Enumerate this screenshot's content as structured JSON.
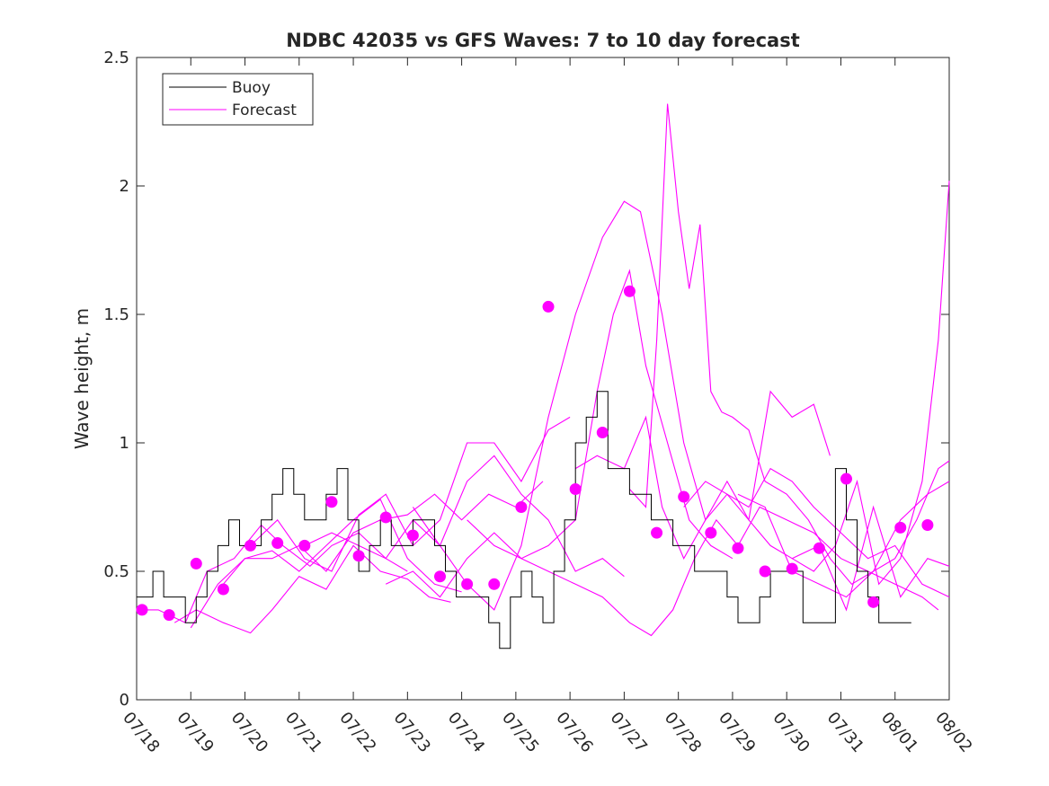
{
  "chart_data": {
    "type": "line",
    "title": "NDBC 42035 vs GFS Waves: 7 to 10 day forecast",
    "xlabel": "",
    "ylabel": "Wave height, m",
    "xlim": [
      0,
      15
    ],
    "ylim": [
      0,
      2.5
    ],
    "x_tick_labels": [
      "07/18",
      "07/19",
      "07/20",
      "07/21",
      "07/22",
      "07/23",
      "07/24",
      "07/25",
      "07/26",
      "07/27",
      "07/28",
      "07/29",
      "07/30",
      "07/31",
      "08/01",
      "08/02"
    ],
    "y_ticks": [
      0,
      0.5,
      1,
      1.5,
      2,
      2.5
    ],
    "y_tick_labels": [
      "0",
      "0.5",
      "1",
      "1.5",
      "2",
      "2.5"
    ],
    "legend_position": "top-left",
    "legend": [
      "Buoy",
      "Forecast"
    ],
    "colors": {
      "buoy": "#000000",
      "forecast": "#ff00ff"
    },
    "buoy": {
      "name": "Buoy",
      "x": [
        0.0,
        0.3,
        0.5,
        0.7,
        0.9,
        1.1,
        1.3,
        1.5,
        1.7,
        1.9,
        2.1,
        2.3,
        2.5,
        2.7,
        2.9,
        3.1,
        3.3,
        3.5,
        3.7,
        3.9,
        4.1,
        4.3,
        4.5,
        4.7,
        4.9,
        5.1,
        5.3,
        5.5,
        5.7,
        5.9,
        6.1,
        6.3,
        6.5,
        6.7,
        6.9,
        7.1,
        7.3,
        7.5,
        7.7,
        7.9,
        8.1,
        8.3,
        8.5,
        8.7,
        8.9,
        9.1,
        9.3,
        9.5,
        9.7,
        9.9,
        10.1,
        10.3,
        10.5,
        10.7,
        10.9,
        11.1,
        11.3,
        11.5,
        11.7,
        11.9,
        12.1,
        12.3,
        12.5,
        12.7,
        12.9,
        13.1,
        13.3,
        13.5,
        13.7,
        13.9,
        14.1,
        14.3
      ],
      "values": [
        0.4,
        0.5,
        0.4,
        0.4,
        0.3,
        0.4,
        0.5,
        0.6,
        0.7,
        0.6,
        0.6,
        0.7,
        0.8,
        0.9,
        0.8,
        0.7,
        0.7,
        0.8,
        0.9,
        0.7,
        0.5,
        0.6,
        0.7,
        0.6,
        0.6,
        0.7,
        0.7,
        0.6,
        0.5,
        0.4,
        0.4,
        0.4,
        0.3,
        0.2,
        0.4,
        0.5,
        0.4,
        0.3,
        0.5,
        0.7,
        1.0,
        1.1,
        1.2,
        0.9,
        0.9,
        0.8,
        0.8,
        0.7,
        0.7,
        0.6,
        0.6,
        0.5,
        0.5,
        0.5,
        0.4,
        0.3,
        0.3,
        0.4,
        0.5,
        0.5,
        0.5,
        0.3,
        0.3,
        0.3,
        0.9,
        0.7,
        0.5,
        0.4,
        0.3,
        0.3,
        0.3,
        0.3
      ]
    },
    "forecast": {
      "name": "Forecast",
      "series": [
        {
          "x": [
            0.0,
            0.4,
            0.9,
            1.3,
            1.8,
            2.3,
            2.7,
            3.2,
            3.6,
            4.1,
            4.6,
            5.0
          ],
          "values": [
            0.35,
            0.35,
            0.3,
            0.5,
            0.55,
            0.68,
            0.6,
            0.52,
            0.6,
            0.65,
            0.55,
            0.5
          ]
        },
        {
          "x": [
            0.7,
            1.1,
            1.6,
            2.1,
            2.5,
            3.0,
            3.5,
            4.0,
            4.5,
            5.0,
            5.4,
            5.8
          ],
          "values": [
            0.3,
            0.35,
            0.3,
            0.26,
            0.35,
            0.48,
            0.43,
            0.6,
            0.5,
            0.47,
            0.4,
            0.38
          ]
        },
        {
          "x": [
            1.0,
            1.5,
            2.0,
            2.5,
            3.0,
            3.5,
            4.0,
            4.5,
            5.0,
            5.5,
            6.0
          ],
          "values": [
            0.28,
            0.45,
            0.55,
            0.58,
            0.5,
            0.6,
            0.7,
            0.78,
            0.55,
            0.45,
            0.42
          ]
        },
        {
          "x": [
            1.6,
            2.0,
            2.5,
            3.0,
            3.5,
            4.0,
            4.5,
            5.0,
            5.5,
            6.0,
            6.5,
            7.0,
            7.5
          ],
          "values": [
            0.45,
            0.55,
            0.55,
            0.6,
            0.5,
            0.65,
            0.7,
            0.72,
            0.8,
            0.7,
            0.8,
            0.75,
            0.85
          ]
        },
        {
          "x": [
            2.1,
            2.6,
            3.1,
            3.6,
            4.1,
            4.6,
            5.1,
            5.6,
            6.1,
            6.6,
            7.1,
            7.6,
            8.0
          ],
          "values": [
            0.6,
            0.7,
            0.55,
            0.5,
            0.72,
            0.8,
            0.6,
            0.7,
            1.0,
            1.0,
            0.85,
            1.05,
            1.1
          ]
        },
        {
          "x": [
            3.1,
            3.6,
            4.1,
            4.6,
            5.1,
            5.6,
            6.1,
            6.6,
            7.1,
            7.6,
            8.1,
            8.6,
            9.0
          ],
          "values": [
            0.6,
            0.65,
            0.6,
            0.55,
            0.7,
            0.6,
            0.85,
            0.95,
            0.8,
            0.7,
            0.5,
            0.55,
            0.48
          ]
        },
        {
          "x": [
            4.6,
            5.1,
            5.6,
            6.1,
            6.6,
            7.1,
            7.6,
            8.1,
            8.5,
            8.8,
            9.1,
            9.4,
            9.8,
            10.2,
            10.6,
            11.0
          ],
          "values": [
            0.45,
            0.5,
            0.4,
            0.55,
            0.65,
            0.55,
            0.6,
            0.7,
            1.2,
            1.5,
            1.67,
            1.3,
            1.0,
            0.7,
            0.6,
            0.55
          ]
        },
        {
          "x": [
            5.1,
            5.6,
            6.1,
            6.6,
            7.1,
            7.6,
            8.1,
            8.6,
            9.0,
            9.3,
            9.7,
            10.1,
            10.5,
            10.9,
            11.3,
            11.7,
            12.1,
            12.5,
            12.8
          ],
          "values": [
            0.75,
            0.6,
            0.45,
            0.35,
            0.6,
            1.1,
            1.5,
            1.8,
            1.94,
            1.9,
            1.5,
            1.0,
            0.7,
            0.85,
            0.7,
            1.2,
            1.1,
            1.15,
            0.95
          ]
        },
        {
          "x": [
            6.1,
            6.6,
            7.1,
            7.6,
            8.1,
            8.6,
            9.1,
            9.5,
            9.9,
            10.3,
            10.7,
            11.1,
            11.5,
            12.0,
            12.5,
            13.0,
            13.5,
            14.0,
            14.5,
            14.8
          ],
          "values": [
            0.7,
            0.6,
            0.55,
            0.5,
            0.45,
            0.4,
            0.3,
            0.25,
            0.35,
            0.55,
            0.7,
            0.6,
            0.75,
            0.7,
            0.65,
            0.55,
            0.5,
            0.45,
            0.4,
            0.35
          ]
        },
        {
          "x": [
            8.1,
            8.5,
            9.0,
            9.4,
            9.7,
            10.1,
            10.5,
            10.9,
            11.3,
            11.7,
            12.1,
            12.5,
            13.0,
            13.5,
            14.0,
            14.5,
            15.0
          ],
          "values": [
            0.9,
            0.95,
            0.9,
            1.1,
            0.75,
            0.55,
            0.7,
            0.8,
            0.75,
            0.9,
            0.85,
            0.75,
            0.65,
            0.55,
            0.6,
            0.45,
            0.4
          ]
        },
        {
          "x": [
            9.1,
            9.4,
            9.6,
            9.8,
            10.0,
            10.2,
            10.4,
            10.6,
            10.8,
            11.0,
            11.3,
            11.6,
            12.0,
            12.4,
            12.8,
            13.2,
            13.6,
            14.0,
            14.4,
            14.8,
            15.0
          ],
          "values": [
            0.82,
            0.75,
            1.4,
            2.32,
            1.9,
            1.6,
            1.85,
            1.2,
            1.12,
            1.1,
            1.05,
            0.85,
            0.8,
            0.7,
            0.55,
            0.45,
            0.5,
            0.55,
            0.7,
            0.9,
            0.93
          ]
        },
        {
          "x": [
            10.1,
            10.5,
            10.9,
            11.3,
            11.7,
            12.1,
            12.5,
            12.9,
            13.3,
            13.7,
            14.1,
            14.5,
            14.8,
            15.0
          ],
          "values": [
            0.75,
            0.85,
            0.8,
            0.7,
            0.6,
            0.55,
            0.5,
            0.6,
            0.85,
            0.45,
            0.55,
            0.85,
            1.4,
            2.02
          ]
        },
        {
          "x": [
            11.1,
            11.6,
            12.1,
            12.6,
            13.1,
            13.6,
            14.1,
            14.6,
            15.0
          ],
          "values": [
            0.8,
            0.75,
            0.5,
            0.45,
            0.4,
            0.5,
            0.7,
            0.8,
            0.85
          ]
        },
        {
          "x": [
            12.1,
            12.6,
            13.1,
            13.6,
            14.1,
            14.6,
            15.0
          ],
          "values": [
            0.55,
            0.6,
            0.35,
            0.75,
            0.4,
            0.55,
            0.52
          ]
        }
      ],
      "markers": {
        "x": [
          0.1,
          0.6,
          1.1,
          1.6,
          2.1,
          2.6,
          3.1,
          3.6,
          4.1,
          4.6,
          5.1,
          5.6,
          6.1,
          6.6,
          7.1,
          7.6,
          8.1,
          8.6,
          9.1,
          9.6,
          10.1,
          10.6,
          11.1,
          11.6,
          12.1,
          12.6,
          13.1,
          13.6,
          14.1,
          14.6
        ],
        "values": [
          0.35,
          0.33,
          0.53,
          0.43,
          0.6,
          0.61,
          0.6,
          0.77,
          0.56,
          0.71,
          0.64,
          0.48,
          0.45,
          0.45,
          0.75,
          1.53,
          0.82,
          1.04,
          1.59,
          0.65,
          0.79,
          0.65,
          0.59,
          0.5,
          0.51,
          0.59,
          0.86,
          0.38,
          0.67,
          0.68
        ]
      }
    }
  }
}
